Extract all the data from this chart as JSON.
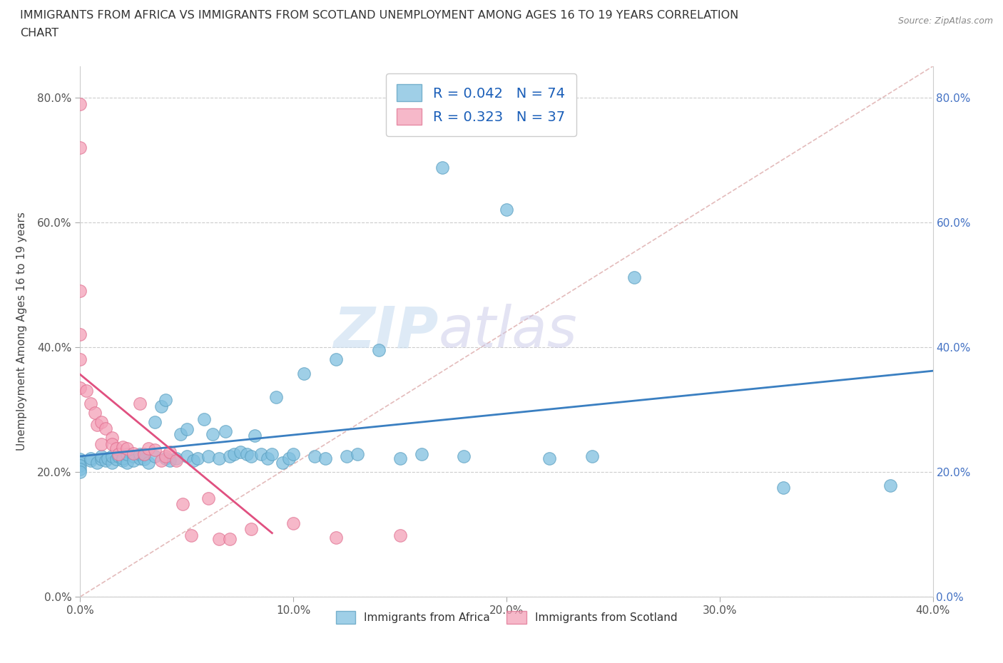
{
  "title_line1": "IMMIGRANTS FROM AFRICA VS IMMIGRANTS FROM SCOTLAND UNEMPLOYMENT AMONG AGES 16 TO 19 YEARS CORRELATION",
  "title_line2": "CHART",
  "source_text": "Source: ZipAtlas.com",
  "ylabel": "Unemployment Among Ages 16 to 19 years",
  "xlim": [
    0.0,
    0.4
  ],
  "ylim": [
    0.0,
    0.85
  ],
  "xticks": [
    0.0,
    0.1,
    0.2,
    0.3,
    0.4
  ],
  "yticks": [
    0.0,
    0.2,
    0.4,
    0.6,
    0.8
  ],
  "xtick_labels": [
    "0.0%",
    "10.0%",
    "20.0%",
    "30.0%",
    "40.0%"
  ],
  "ytick_labels": [
    "0.0%",
    "20.0%",
    "40.0%",
    "60.0%",
    "80.0%"
  ],
  "watermark_zip": "ZIP",
  "watermark_atlas": "atlas",
  "africa_color": "#7fbfdf",
  "scotland_color": "#f4a0b8",
  "africa_edge": "#5a9fc0",
  "scotland_edge": "#e07090",
  "africa_R": 0.042,
  "africa_N": 74,
  "scotland_R": 0.323,
  "scotland_N": 37,
  "legend_label_africa": "Immigrants from Africa",
  "legend_label_scotland": "Immigrants from Scotland",
  "africa_x": [
    0.0,
    0.0,
    0.0,
    0.0,
    0.0,
    0.005,
    0.005,
    0.008,
    0.01,
    0.01,
    0.012,
    0.013,
    0.015,
    0.015,
    0.017,
    0.018,
    0.02,
    0.02,
    0.022,
    0.022,
    0.025,
    0.025,
    0.028,
    0.028,
    0.03,
    0.03,
    0.032,
    0.035,
    0.035,
    0.038,
    0.04,
    0.04,
    0.042,
    0.045,
    0.047,
    0.05,
    0.05,
    0.053,
    0.055,
    0.058,
    0.06,
    0.062,
    0.065,
    0.068,
    0.07,
    0.072,
    0.075,
    0.078,
    0.08,
    0.082,
    0.085,
    0.088,
    0.09,
    0.092,
    0.095,
    0.098,
    0.1,
    0.105,
    0.11,
    0.115,
    0.12,
    0.125,
    0.13,
    0.14,
    0.15,
    0.16,
    0.17,
    0.18,
    0.2,
    0.22,
    0.24,
    0.26,
    0.33,
    0.38
  ],
  "africa_y": [
    0.22,
    0.215,
    0.21,
    0.205,
    0.2,
    0.218,
    0.222,
    0.215,
    0.22,
    0.225,
    0.218,
    0.222,
    0.215,
    0.225,
    0.22,
    0.225,
    0.218,
    0.222,
    0.215,
    0.228,
    0.225,
    0.218,
    0.222,
    0.228,
    0.22,
    0.228,
    0.215,
    0.28,
    0.225,
    0.305,
    0.222,
    0.315,
    0.218,
    0.222,
    0.26,
    0.225,
    0.268,
    0.218,
    0.222,
    0.285,
    0.225,
    0.26,
    0.222,
    0.265,
    0.225,
    0.228,
    0.232,
    0.228,
    0.225,
    0.258,
    0.228,
    0.222,
    0.228,
    0.32,
    0.215,
    0.222,
    0.228,
    0.358,
    0.225,
    0.222,
    0.38,
    0.225,
    0.228,
    0.395,
    0.222,
    0.228,
    0.688,
    0.225,
    0.62,
    0.222,
    0.225,
    0.512,
    0.175,
    0.178
  ],
  "scotland_x": [
    0.0,
    0.0,
    0.0,
    0.0,
    0.0,
    0.0,
    0.003,
    0.005,
    0.007,
    0.008,
    0.01,
    0.01,
    0.012,
    0.015,
    0.015,
    0.017,
    0.018,
    0.02,
    0.022,
    0.025,
    0.028,
    0.03,
    0.032,
    0.035,
    0.038,
    0.04,
    0.042,
    0.045,
    0.048,
    0.052,
    0.06,
    0.065,
    0.07,
    0.08,
    0.1,
    0.12,
    0.15
  ],
  "scotland_y": [
    0.79,
    0.72,
    0.49,
    0.42,
    0.38,
    0.335,
    0.33,
    0.31,
    0.295,
    0.275,
    0.245,
    0.28,
    0.27,
    0.255,
    0.245,
    0.238,
    0.228,
    0.24,
    0.238,
    0.23,
    0.31,
    0.228,
    0.238,
    0.235,
    0.218,
    0.225,
    0.232,
    0.218,
    0.148,
    0.098,
    0.158,
    0.092,
    0.092,
    0.108,
    0.118,
    0.095,
    0.098
  ]
}
